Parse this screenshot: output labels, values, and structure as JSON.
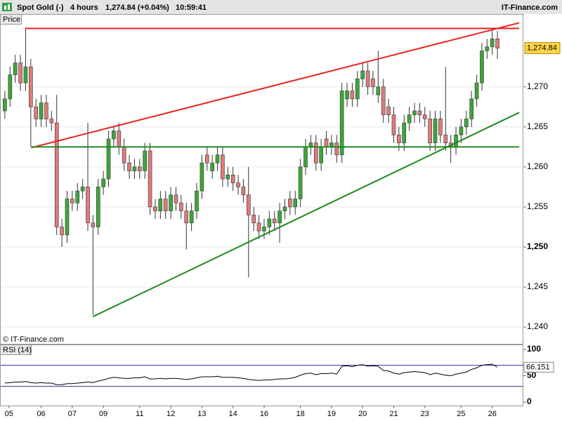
{
  "header": {
    "instrument": "Spot Gold (-)",
    "period": "4 hours",
    "quote": "1,274.84 (+0.04%)",
    "time": "10:59:41",
    "site": "IT-Finance.com",
    "copyright": "© IT-Finance.com"
  },
  "chart_data": [
    {
      "type": "candlestick",
      "title": "Price",
      "xlim": [
        -0.8,
        100
      ],
      "ylim": [
        1237.9,
        1279.1
      ],
      "yticks": [
        {
          "value": 1240,
          "label": "1,240"
        },
        {
          "value": 1245,
          "label": "1,245"
        },
        {
          "value": 1250,
          "label": "1,250"
        },
        {
          "value": 1255,
          "label": "1,255"
        },
        {
          "value": 1260,
          "label": "1,260"
        },
        {
          "value": 1265,
          "label": "1,265"
        },
        {
          "value": 1270,
          "label": "1,270"
        }
      ],
      "grid": true,
      "up_color": "#3aa83a",
      "down_color": "#e07a7a",
      "last": {
        "value": 1274.84,
        "label": "1,274.84"
      },
      "open": [
        1267,
        1268.5,
        1271.5,
        1273,
        1270.5,
        1272.5,
        1267.5,
        1266,
        1268,
        1266,
        1265.5,
        1252.5,
        1251.5,
        1256,
        1255.5,
        1257,
        1257.5,
        1253,
        1252.5,
        1257.5,
        1258.5,
        1263.5,
        1264.5,
        1262.5,
        1260.5,
        1259.5,
        1260,
        1259.5,
        1262,
        1255,
        1254.5,
        1256,
        1254.5,
        1256.5,
        1255.5,
        1254.5,
        1253,
        1254.5,
        1257,
        1261.5,
        1259.5,
        1260.5,
        1261.5,
        1258.5,
        1259,
        1258,
        1257.5,
        1256.5,
        1254,
        1253,
        1252,
        1252.5,
        1253.5,
        1253,
        1254.5,
        1256,
        1255,
        1256,
        1260,
        1262.5,
        1263,
        1260.5,
        1263.5,
        1262.5,
        1263,
        1261.5,
        1268.5,
        1269.5,
        1268.5,
        1271,
        1272,
        1271,
        1269,
        1270,
        1267.5,
        1266.5,
        1264,
        1263,
        1265.5,
        1266.5,
        1267,
        1266.5,
        1266,
        1263,
        1266,
        1264,
        1263,
        1262.5,
        1264,
        1265,
        1266,
        1268.5,
        1270.5,
        1274.5,
        1275,
        1276
      ],
      "high": [
        1269.5,
        1272.5,
        1274,
        1274,
        1277.3,
        1273.5,
        1268.5,
        1269,
        1269,
        1267,
        1269,
        1253.5,
        1257,
        1257,
        1258,
        1258.5,
        1265.5,
        1254,
        1258.5,
        1259.5,
        1264.5,
        1265,
        1265.5,
        1263.5,
        1261.5,
        1261,
        1261,
        1263,
        1263,
        1256,
        1257,
        1257,
        1257.5,
        1257.5,
        1256.5,
        1255.5,
        1255.5,
        1258,
        1261.5,
        1262.5,
        1261.5,
        1262.5,
        1262.5,
        1260,
        1260,
        1259,
        1258.5,
        1260,
        1255,
        1254,
        1253.5,
        1254.5,
        1254.5,
        1255.5,
        1256,
        1257,
        1257,
        1261,
        1263.5,
        1264,
        1264,
        1263.5,
        1264.5,
        1264,
        1264,
        1270.5,
        1270.5,
        1270.5,
        1272,
        1273,
        1273,
        1272,
        1274.5,
        1271,
        1268.5,
        1267.5,
        1265,
        1266.5,
        1267.5,
        1268,
        1268,
        1267.5,
        1267,
        1267,
        1267,
        1272.5,
        1264,
        1265,
        1266,
        1267,
        1269.5,
        1271.5,
        1275.5,
        1276,
        1277,
        1277
      ],
      "low": [
        1266,
        1267.5,
        1270.5,
        1269.5,
        1269.5,
        1262.5,
        1265,
        1265,
        1265,
        1264.5,
        1251.5,
        1250,
        1250.5,
        1254.5,
        1254.5,
        1256,
        1252,
        1241.5,
        1251.5,
        1256.5,
        1257.5,
        1262.5,
        1261.5,
        1259.5,
        1258.5,
        1258.5,
        1258.5,
        1258.5,
        1254,
        1253.5,
        1253.5,
        1253.5,
        1253.5,
        1254.5,
        1253.5,
        1249.7,
        1252,
        1253.5,
        1256,
        1259.5,
        1258.5,
        1259.5,
        1257.5,
        1257.5,
        1257,
        1256.5,
        1255.5,
        1246.2,
        1252,
        1251,
        1251,
        1251.5,
        1252,
        1250.5,
        1253.5,
        1254,
        1254,
        1255,
        1259,
        1261.5,
        1259.5,
        1259.5,
        1261.5,
        1261.5,
        1260.5,
        1260.5,
        1267.5,
        1267.5,
        1267.5,
        1270,
        1269,
        1269,
        1268,
        1265.5,
        1265.5,
        1263,
        1262,
        1262,
        1264.5,
        1265.5,
        1265.5,
        1265,
        1262,
        1262,
        1263,
        1262,
        1260.5,
        1261.5,
        1263,
        1264,
        1265,
        1267.5,
        1269.5,
        1273.5,
        1274,
        1273.5
      ],
      "close": [
        1268.5,
        1271.5,
        1273,
        1270.5,
        1272.5,
        1267.5,
        1266,
        1268,
        1266,
        1265.5,
        1252.5,
        1251.5,
        1256,
        1255.5,
        1257,
        1257.5,
        1253,
        1252.5,
        1257.5,
        1258.5,
        1263.5,
        1264.5,
        1262.5,
        1260.5,
        1259.5,
        1260,
        1259.5,
        1262,
        1255,
        1254.5,
        1256,
        1254.5,
        1256.5,
        1255.5,
        1254.5,
        1253,
        1254.5,
        1257,
        1260.5,
        1260.5,
        1260.5,
        1261.5,
        1258.5,
        1259,
        1258,
        1257.5,
        1256.5,
        1254,
        1253,
        1252,
        1252.5,
        1253.5,
        1253,
        1254.5,
        1255,
        1255,
        1256,
        1260,
        1262.5,
        1263,
        1260.5,
        1262.5,
        1262.5,
        1263,
        1261.5,
        1269.5,
        1269.5,
        1268.5,
        1271,
        1272,
        1270,
        1270,
        1270,
        1266.5,
        1266.5,
        1264,
        1263,
        1265.5,
        1266.5,
        1267,
        1266.5,
        1266,
        1263,
        1266,
        1264,
        1263,
        1262.5,
        1264,
        1265,
        1266,
        1268.5,
        1270.5,
        1274.5,
        1275,
        1276,
        1274.84
      ],
      "lines": [
        {
          "color": "#e8231f",
          "x": [
            3.9,
            99.2
          ],
          "y": [
            1277.3,
            1277.3
          ]
        },
        {
          "color": "#e8231f",
          "x": [
            5.1,
            99.2
          ],
          "y": [
            1262.4,
            1278
          ]
        },
        {
          "color": "#1f8a1f",
          "x": [
            5.1,
            99.2
          ],
          "y": [
            1262.5,
            1262.5
          ]
        },
        {
          "color": "#1f8a1f",
          "x": [
            17,
            99.2
          ],
          "y": [
            1241.3,
            1266.8
          ]
        }
      ]
    },
    {
      "type": "line",
      "title": "RSI (14)",
      "xlim": [
        -0.8,
        100
      ],
      "ylim": [
        -6.7,
        108
      ],
      "yticks": [
        0,
        50,
        100
      ],
      "levels": [
        30,
        70
      ],
      "level_color": "#3a3aa0",
      "color": "#000000",
      "last": 66.151,
      "xticks": [
        {
          "value": 0.8,
          "label": "05"
        },
        {
          "value": 7,
          "label": "06"
        },
        {
          "value": 13,
          "label": "07"
        },
        {
          "value": 19,
          "label": "09"
        },
        {
          "value": 26,
          "label": "11"
        },
        {
          "value": 32,
          "label": "12"
        },
        {
          "value": 38,
          "label": "13"
        },
        {
          "value": 44,
          "label": "14"
        },
        {
          "value": 50,
          "label": "16"
        },
        {
          "value": 57,
          "label": "18"
        },
        {
          "value": 63,
          "label": "19"
        },
        {
          "value": 69,
          "label": "20"
        },
        {
          "value": 75,
          "label": "21"
        },
        {
          "value": 81,
          "label": "23"
        },
        {
          "value": 88,
          "label": "25"
        },
        {
          "value": 94,
          "label": "26"
        }
      ],
      "values": [
        36,
        37,
        38,
        38,
        39,
        37,
        36,
        37,
        36,
        36,
        33,
        33,
        35,
        35,
        36,
        37,
        38,
        37,
        40,
        42,
        45,
        47,
        46,
        45,
        45,
        46,
        46,
        48,
        44,
        44,
        45,
        44,
        45,
        45,
        44,
        43,
        44,
        46,
        48,
        48,
        48,
        49,
        47,
        47,
        47,
        46,
        45,
        43,
        42,
        41,
        42,
        42,
        43,
        44,
        44,
        45,
        47,
        51,
        54,
        55,
        52,
        54,
        54,
        55,
        53,
        68,
        69,
        67,
        70,
        71,
        68,
        69,
        68,
        60,
        59,
        55,
        53,
        56,
        57,
        58,
        57,
        56,
        52,
        55,
        53,
        51,
        50,
        53,
        55,
        57,
        62,
        65,
        70,
        71,
        72,
        66.151
      ]
    }
  ]
}
